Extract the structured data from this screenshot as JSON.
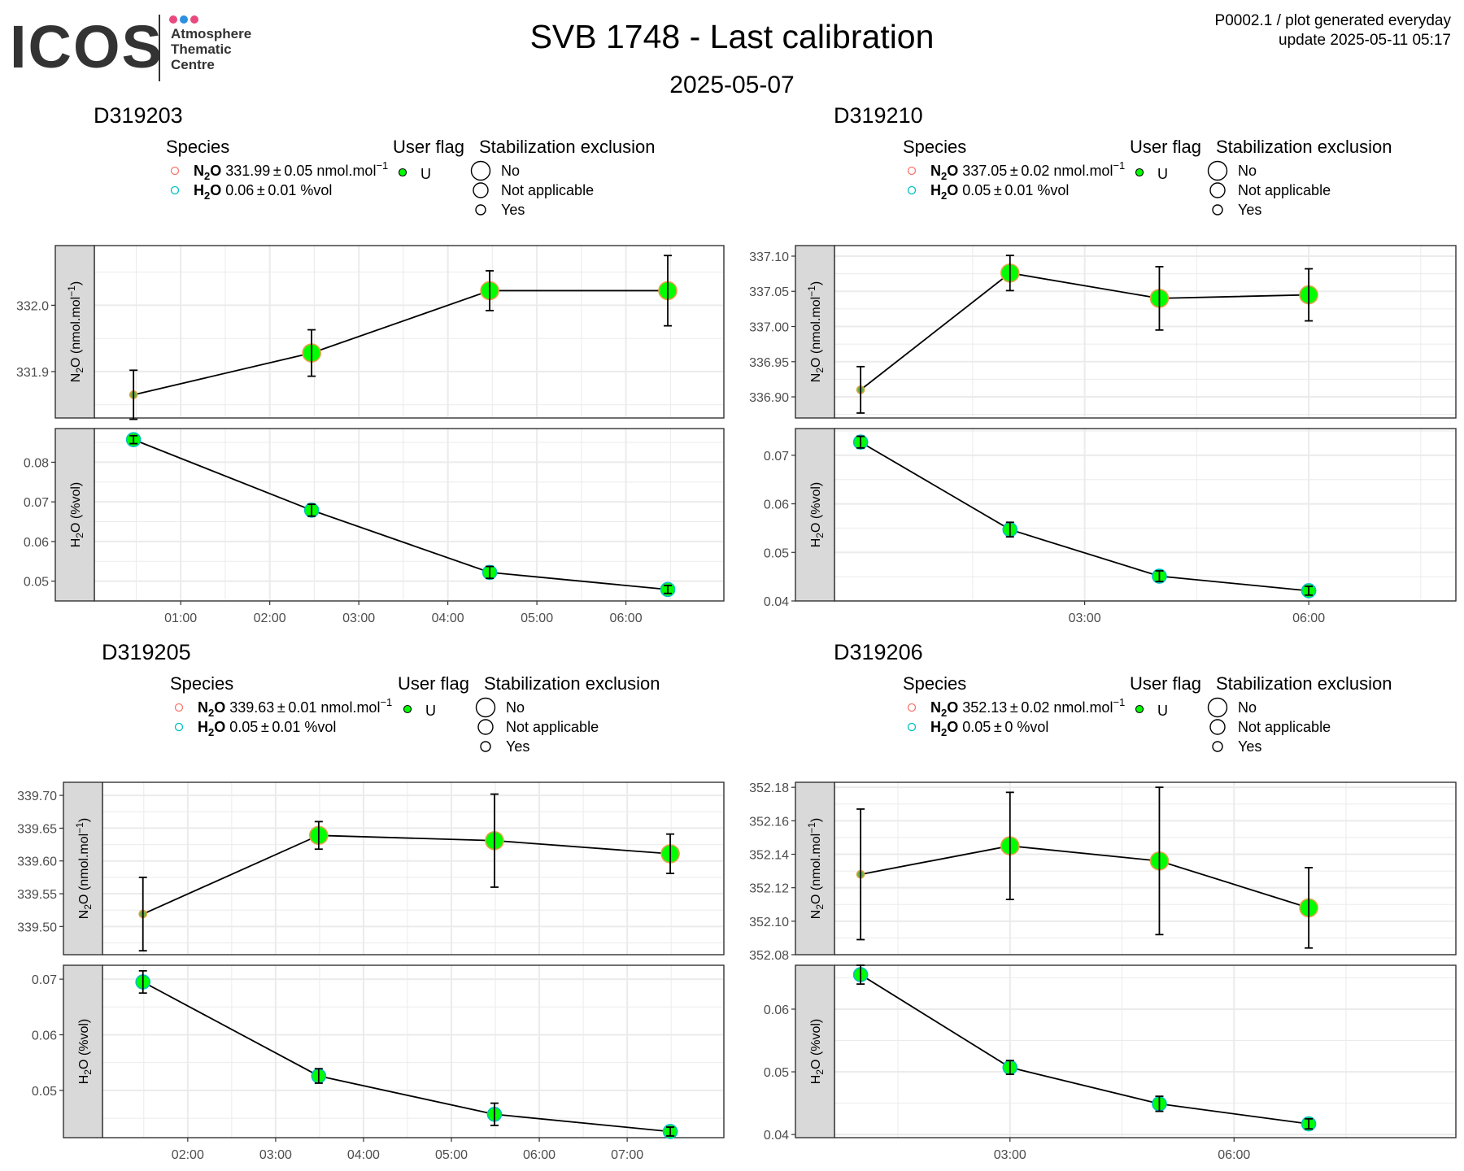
{
  "header": {
    "logo_text": "ICOS",
    "logo_line1": "Atmosphere",
    "logo_line2": "Thematic",
    "logo_line3": "Centre",
    "logo_dot_colors": [
      "#e84a7f",
      "#2d8fe0",
      "#e84a7f"
    ],
    "title": "SVB 1748 - Last calibration",
    "date": "2025-05-07",
    "info_line1": "P0002.1 / plot generated everyday",
    "info_line2": "update  2025-05-11 05:17"
  },
  "legend_titles": {
    "species": "Species",
    "user_flag": "User flag",
    "stab": "Stabilization exclusion",
    "flag_value": "U",
    "stab_items": [
      "No",
      "Not applicable",
      "Yes"
    ]
  },
  "colors": {
    "n2o_legend": "#f8766d",
    "h2o_legend": "#00bfc4",
    "point_green": "#00ff00",
    "strip_bg": "#d9d9d9",
    "grid": "#ebebeb"
  },
  "chart_data": [
    {
      "type": "scatter",
      "title": "D319203",
      "legend": {
        "n2o": {
          "species": "N2O",
          "mean": "331.99",
          "sd": "0.05",
          "unit": "nmol.mol"
        },
        "h2o": {
          "species": "H2O",
          "mean": "0.06",
          "sd": "0.01",
          "unit": "%vol"
        }
      },
      "x_ticks": [
        "01:00",
        "02:00",
        "03:00",
        "04:00",
        "05:00",
        "06:00"
      ],
      "x_tick_pos": [
        1.0,
        2.0,
        3.0,
        4.0,
        5.0,
        6.0
      ],
      "xlim": [
        0.03,
        7.1
      ],
      "panels": [
        {
          "ylabel": "N2O (nmol.mol-1)",
          "ylim": [
            331.83,
            332.09
          ],
          "y_ticks": [
            331.9,
            332.0
          ],
          "y_tick_labels": [
            "331.9",
            "332.0"
          ],
          "y_minor": [
            331.85,
            331.95,
            332.05
          ],
          "points": [
            {
              "x": 0.47,
              "y": 331.865,
              "err": 0.037,
              "stab": "Yes"
            },
            {
              "x": 2.47,
              "y": 331.928,
              "err": 0.035,
              "stab": "No"
            },
            {
              "x": 4.47,
              "y": 332.022,
              "err": 0.03,
              "stab": "No"
            },
            {
              "x": 6.47,
              "y": 332.022,
              "err": 0.053,
              "stab": "No"
            }
          ]
        },
        {
          "ylabel": "H2O (%vol)",
          "ylim": [
            0.045,
            0.0885
          ],
          "y_ticks": [
            0.05,
            0.06,
            0.07,
            0.08
          ],
          "y_tick_labels": [
            "0.05",
            "0.06",
            "0.07",
            "0.08"
          ],
          "y_minor": [
            0.055,
            0.065,
            0.075,
            0.085
          ],
          "points": [
            {
              "x": 0.47,
              "y": 0.0857,
              "err": 0.001,
              "stab": "Not applicable"
            },
            {
              "x": 2.47,
              "y": 0.0679,
              "err": 0.0015,
              "stab": "Not applicable"
            },
            {
              "x": 4.47,
              "y": 0.0522,
              "err": 0.0015,
              "stab": "Not applicable"
            },
            {
              "x": 6.47,
              "y": 0.0479,
              "err": 0.001,
              "stab": "Not applicable"
            }
          ]
        }
      ]
    },
    {
      "type": "scatter",
      "title": "D319210",
      "legend": {
        "n2o": {
          "species": "N2O",
          "mean": "337.05",
          "sd": "0.02",
          "unit": "nmol.mol"
        },
        "h2o": {
          "species": "H2O",
          "mean": "0.05",
          "sd": "0.01",
          "unit": "%vol"
        }
      },
      "x_ticks": [
        "03:00",
        "06:00"
      ],
      "x_tick_pos": [
        3.0,
        6.0
      ],
      "xlim": [
        -0.35,
        7.97
      ],
      "panels": [
        {
          "ylabel": "N2O (nmol.mol-1)",
          "ylim": [
            336.87,
            337.115
          ],
          "y_ticks": [
            336.9,
            336.95,
            337.0,
            337.05,
            337.1
          ],
          "y_tick_labels": [
            "336.90",
            "336.95",
            "337.00",
            "337.05",
            "337.10"
          ],
          "y_minor": [
            336.875,
            336.925,
            336.975,
            337.025,
            337.075
          ],
          "points": [
            {
              "x": 0.0,
              "y": 336.91,
              "err": 0.033,
              "stab": "Yes"
            },
            {
              "x": 2.0,
              "y": 337.076,
              "err": 0.025,
              "stab": "No"
            },
            {
              "x": 4.0,
              "y": 337.04,
              "err": 0.045,
              "stab": "No"
            },
            {
              "x": 6.0,
              "y": 337.045,
              "err": 0.037,
              "stab": "No"
            }
          ]
        },
        {
          "ylabel": "H2O (%vol)",
          "ylim": [
            0.04,
            0.0755
          ],
          "y_ticks": [
            0.04,
            0.05,
            0.06,
            0.07
          ],
          "y_tick_labels": [
            "0.04",
            "0.05",
            "0.06",
            "0.07"
          ],
          "y_minor": [
            0.045,
            0.055,
            0.065,
            0.075
          ],
          "points": [
            {
              "x": 0.0,
              "y": 0.0727,
              "err": 0.0012,
              "stab": "Not applicable"
            },
            {
              "x": 2.0,
              "y": 0.0547,
              "err": 0.0015,
              "stab": "Not applicable"
            },
            {
              "x": 4.0,
              "y": 0.0451,
              "err": 0.0011,
              "stab": "Not applicable"
            },
            {
              "x": 6.0,
              "y": 0.0421,
              "err": 0.0009,
              "stab": "Not applicable"
            }
          ]
        }
      ]
    },
    {
      "type": "scatter",
      "title": "D319205",
      "legend": {
        "n2o": {
          "species": "N2O",
          "mean": "339.63",
          "sd": "0.01",
          "unit": "nmol.mol"
        },
        "h2o": {
          "species": "H2O",
          "mean": "0.05",
          "sd": "0.01",
          "unit": "%vol"
        }
      },
      "x_ticks": [
        "02:00",
        "03:00",
        "04:00",
        "05:00",
        "06:00",
        "07:00"
      ],
      "x_tick_pos": [
        2.0,
        3.0,
        4.0,
        5.0,
        6.0,
        7.0
      ],
      "xlim": [
        1.03,
        8.1
      ],
      "panels": [
        {
          "ylabel": "N2O (nmol.mol-1)",
          "ylim": [
            339.457,
            339.72
          ],
          "y_ticks": [
            339.5,
            339.55,
            339.6,
            339.65,
            339.7
          ],
          "y_tick_labels": [
            "339.50",
            "339.55",
            "339.60",
            "339.65",
            "339.70"
          ],
          "y_minor": [
            339.475,
            339.525,
            339.575,
            339.625,
            339.675
          ],
          "points": [
            {
              "x": 1.49,
              "y": 339.519,
              "err": 0.056,
              "stab": "Yes"
            },
            {
              "x": 3.49,
              "y": 339.639,
              "err": 0.021,
              "stab": "No"
            },
            {
              "x": 5.49,
              "y": 339.631,
              "err": 0.071,
              "stab": "No"
            },
            {
              "x": 7.49,
              "y": 339.611,
              "err": 0.03,
              "stab": "No"
            }
          ]
        },
        {
          "ylabel": "H2O (%vol)",
          "ylim": [
            0.0415,
            0.0725
          ],
          "y_ticks": [
            0.05,
            0.06,
            0.07
          ],
          "y_tick_labels": [
            "0.05",
            "0.06",
            "0.07"
          ],
          "y_minor": [
            0.045,
            0.055,
            0.065
          ],
          "points": [
            {
              "x": 1.49,
              "y": 0.0695,
              "err": 0.002,
              "stab": "Not applicable"
            },
            {
              "x": 3.49,
              "y": 0.0526,
              "err": 0.0013,
              "stab": "Not applicable"
            },
            {
              "x": 5.49,
              "y": 0.0457,
              "err": 0.002,
              "stab": "Not applicable"
            },
            {
              "x": 7.49,
              "y": 0.0426,
              "err": 0.0008,
              "stab": "Not applicable"
            }
          ]
        }
      ]
    },
    {
      "type": "scatter",
      "title": "D319206",
      "legend": {
        "n2o": {
          "species": "N2O",
          "mean": "352.13",
          "sd": "0.02",
          "unit": "nmol.mol"
        },
        "h2o": {
          "species": "H2O",
          "mean": "0.05",
          "sd": "0",
          "unit": "%vol"
        }
      },
      "x_ticks": [
        "03:00",
        "06:00"
      ],
      "x_tick_pos": [
        3.0,
        6.0
      ],
      "xlim": [
        0.65,
        8.97
      ],
      "panels": [
        {
          "ylabel": "N2O (nmol.mol-1)",
          "ylim": [
            352.08,
            352.183
          ],
          "y_ticks": [
            352.08,
            352.1,
            352.12,
            352.14,
            352.16,
            352.18
          ],
          "y_tick_labels": [
            "352.08",
            "352.10",
            "352.12",
            "352.14",
            "352.16",
            "352.18"
          ],
          "y_minor": [
            352.09,
            352.11,
            352.13,
            352.15,
            352.17
          ],
          "points": [
            {
              "x": 1.0,
              "y": 352.128,
              "err": 0.039,
              "stab": "Yes"
            },
            {
              "x": 3.0,
              "y": 352.145,
              "err": 0.032,
              "stab": "No"
            },
            {
              "x": 5.0,
              "y": 352.136,
              "err": 0.044,
              "stab": "No"
            },
            {
              "x": 7.0,
              "y": 352.108,
              "err": 0.024,
              "stab": "No"
            }
          ]
        },
        {
          "ylabel": "H2O (%vol)",
          "ylim": [
            0.0395,
            0.067
          ],
          "y_ticks": [
            0.04,
            0.05,
            0.06
          ],
          "y_tick_labels": [
            "0.04",
            "0.05",
            "0.06"
          ],
          "y_minor": [
            0.045,
            0.055,
            0.065
          ],
          "points": [
            {
              "x": 1.0,
              "y": 0.0655,
              "err": 0.0015,
              "stab": "Not applicable"
            },
            {
              "x": 3.0,
              "y": 0.0507,
              "err": 0.0011,
              "stab": "Not applicable"
            },
            {
              "x": 5.0,
              "y": 0.0449,
              "err": 0.0012,
              "stab": "Not applicable"
            },
            {
              "x": 7.0,
              "y": 0.0417,
              "err": 0.0008,
              "stab": "Not applicable"
            }
          ]
        }
      ]
    }
  ]
}
